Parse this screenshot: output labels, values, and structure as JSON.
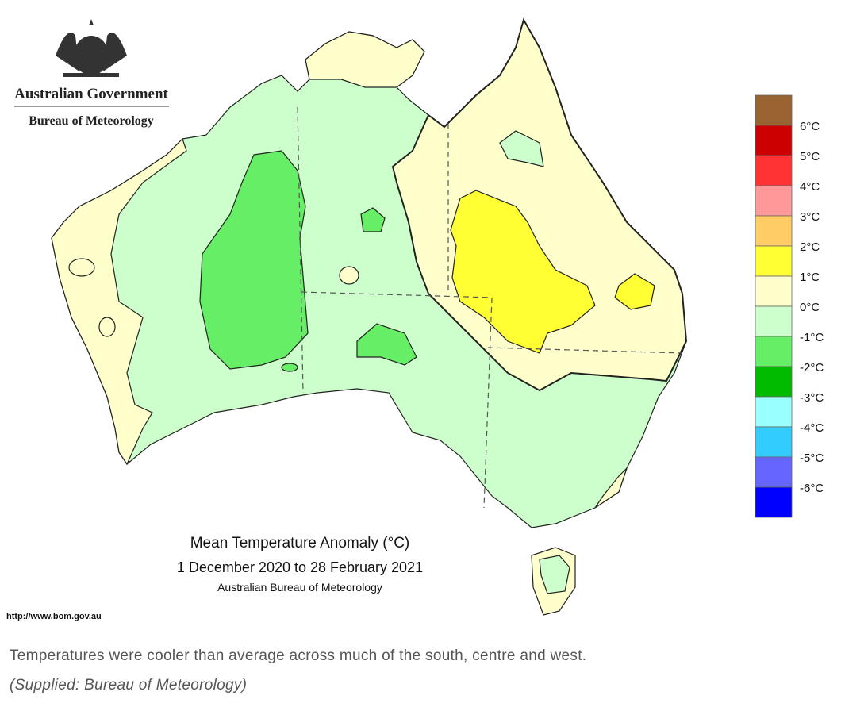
{
  "header": {
    "agency": "Australian Government",
    "bureau": "Bureau of Meteorology"
  },
  "map": {
    "title": "Mean Temperature Anomaly (°C)",
    "period": "1 December 2020 to 28 February 2021",
    "source": "Australian Bureau of Meteorology",
    "url": "http://www.bom.gov.au"
  },
  "legend": {
    "colors": [
      "#9a6332",
      "#cc0000",
      "#ff3333",
      "#ff9999",
      "#ffcc66",
      "#ffff33",
      "#ffffcc",
      "#ccffcc",
      "#66ee66",
      "#00bb00",
      "#99ffff",
      "#33ccff",
      "#6666ff",
      "#0000ff"
    ],
    "labels": [
      "6°C",
      "5°C",
      "4°C",
      "3°C",
      "2°C",
      "1°C",
      "0°C",
      "-1°C",
      "-2°C",
      "-3°C",
      "-4°C",
      "-5°C",
      "-6°C"
    ]
  },
  "caption": {
    "text": "Temperatures were cooler than average across much of the south, centre and west.",
    "credit": "(Supplied: Bureau of Meteorology)"
  }
}
